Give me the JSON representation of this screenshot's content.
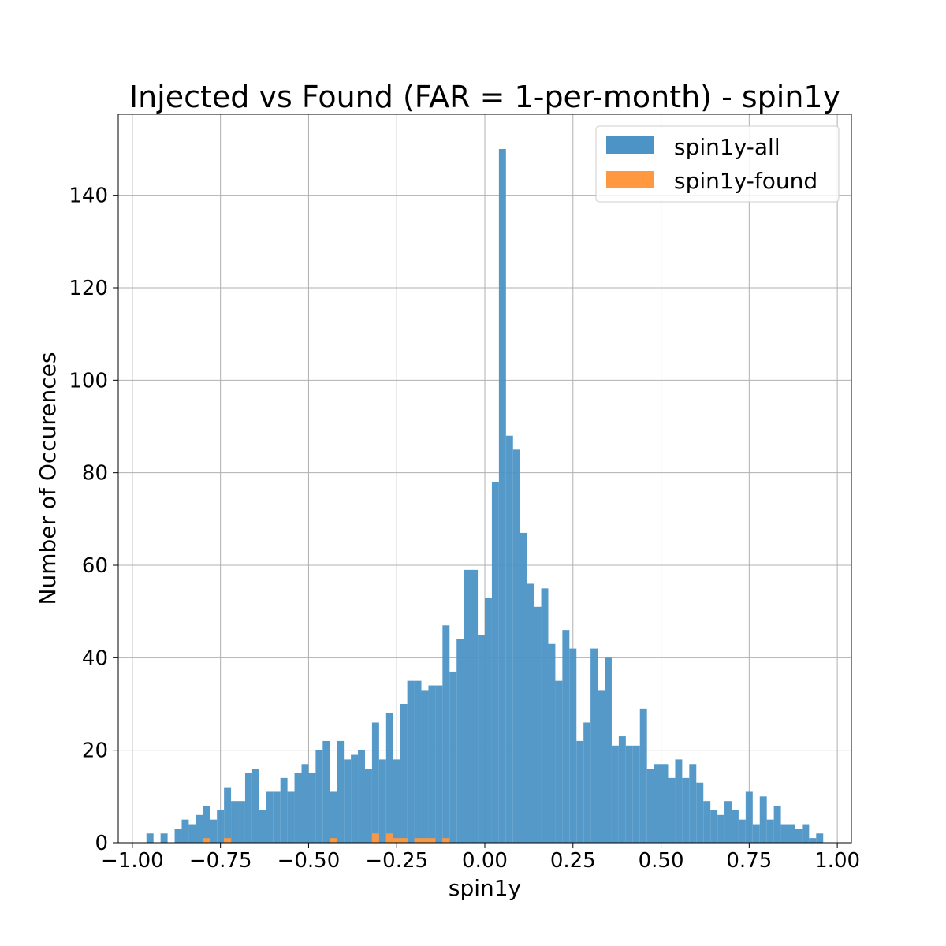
{
  "chart_data": {
    "type": "bar",
    "title": "Injected vs Found (FAR = 1-per-month) - spin1y",
    "xlabel": "spin1y",
    "ylabel": "Number of Occurences",
    "xlim": [
      -1.04,
      1.04
    ],
    "ylim": [
      0,
      157.5
    ],
    "bin_start": -0.96,
    "bin_width": 0.02,
    "grid": true,
    "legend_placement": "top-right",
    "xticks": [
      -1.0,
      -0.75,
      -0.5,
      -0.25,
      0.0,
      0.25,
      0.5,
      0.75,
      1.0
    ],
    "xtick_labels": [
      "−1.00",
      "−0.75",
      "−0.50",
      "−0.25",
      "0.00",
      "0.25",
      "0.50",
      "0.75",
      "1.00"
    ],
    "yticks": [
      0,
      20,
      40,
      60,
      80,
      100,
      120,
      140
    ],
    "ytick_labels": [
      "0",
      "20",
      "40",
      "60",
      "80",
      "100",
      "120",
      "140"
    ],
    "series": [
      {
        "name": "spin1y-all",
        "color": "#4c94c6",
        "values": [
          2,
          0,
          2,
          0,
          3,
          5,
          4,
          6,
          8,
          5,
          7,
          12,
          9,
          9,
          15,
          16,
          7,
          11,
          11,
          14,
          11,
          15,
          17,
          15,
          20,
          22,
          11,
          22,
          18,
          19,
          20,
          16,
          26,
          18,
          28,
          18,
          30,
          35,
          35,
          33,
          34,
          34,
          47,
          37,
          44,
          59,
          59,
          45,
          53,
          78,
          150,
          88,
          85,
          67,
          56,
          51,
          55,
          43,
          35,
          46,
          42,
          22,
          26,
          42,
          33,
          40,
          21,
          23,
          21,
          21,
          29,
          16,
          17,
          17,
          14,
          18,
          14,
          17,
          13,
          9,
          7,
          6,
          9,
          7,
          5,
          11,
          4,
          10,
          5,
          8,
          4,
          4,
          3,
          4,
          1,
          2
        ]
      },
      {
        "name": "spin1y-found",
        "color": "#ff983e",
        "values": [
          0,
          0,
          0,
          0,
          0,
          0,
          0,
          0,
          1,
          0,
          0,
          1,
          0,
          0,
          0,
          0,
          0,
          0,
          0,
          0,
          0,
          0,
          0,
          0,
          0,
          0,
          1,
          0,
          0,
          0,
          0,
          0,
          2,
          0,
          2,
          1,
          1,
          0,
          1,
          1,
          1,
          0,
          1,
          0,
          0,
          0,
          0,
          0,
          0,
          0,
          0,
          0,
          0,
          0,
          0,
          0,
          0,
          0,
          0,
          0,
          0,
          0,
          0,
          0,
          0,
          0,
          0,
          0,
          0,
          0,
          0,
          0,
          0,
          0,
          0,
          0,
          0,
          0,
          0,
          0,
          0,
          0,
          0,
          0,
          0,
          0,
          0,
          0,
          0,
          0,
          0,
          0,
          0,
          0,
          0,
          0
        ]
      }
    ]
  }
}
